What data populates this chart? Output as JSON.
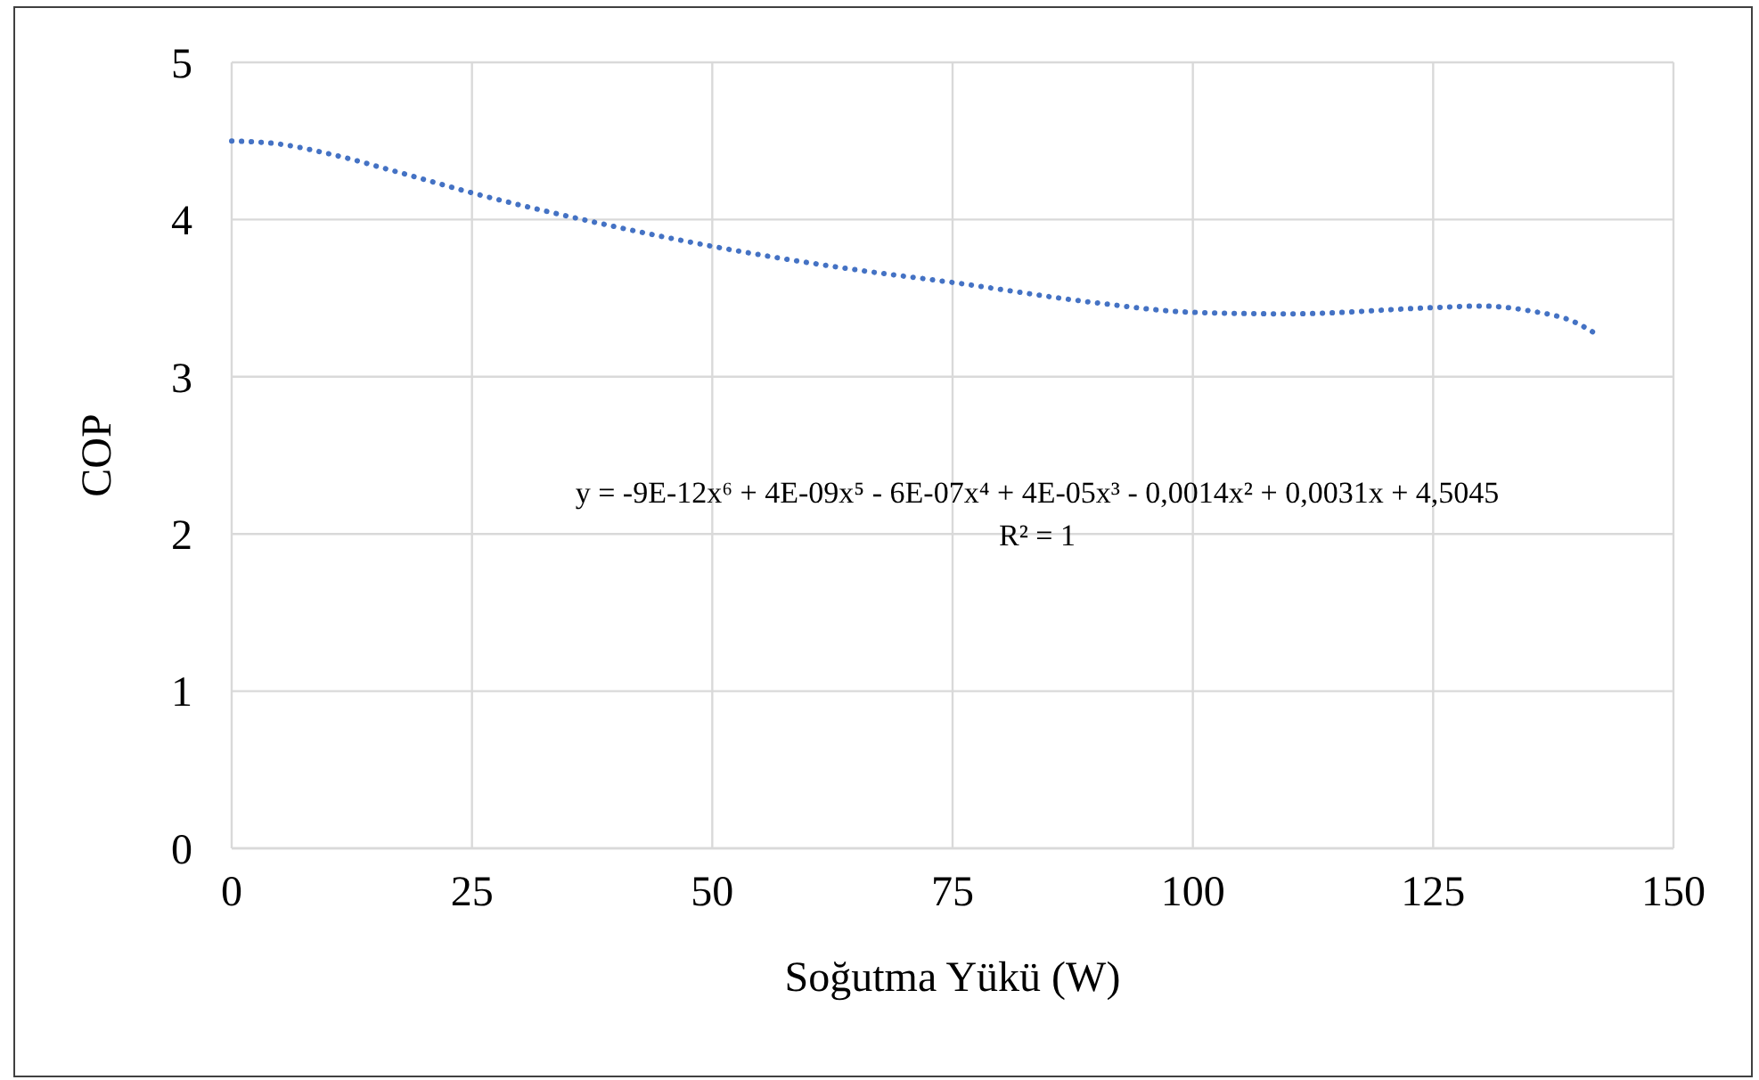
{
  "chart_data": {
    "type": "line",
    "xlabel": "Soğutma Yükü (W)",
    "ylabel": "COP",
    "x": [
      0,
      5,
      10,
      18,
      25,
      38,
      50,
      65,
      75,
      90,
      100,
      110,
      125,
      130,
      135,
      140,
      142
    ],
    "series": [
      {
        "color": "#4472c4",
        "values": [
          4.5,
          4.48,
          4.42,
          4.29,
          4.17,
          3.98,
          3.83,
          3.68,
          3.6,
          3.47,
          3.41,
          3.4,
          3.44,
          3.45,
          3.42,
          3.34,
          3.27
        ]
      }
    ],
    "xlim": [
      0,
      150
    ],
    "xticks": [
      0,
      25,
      50,
      75,
      100,
      125,
      150
    ],
    "ylim": [
      0,
      5
    ],
    "yticks": [
      0,
      1,
      2,
      3,
      4,
      5
    ],
    "grid": true,
    "marker": "none",
    "line_style": "dotted",
    "annotations": [
      "y = -9E-12x⁶ + 4E-09x⁵ - 6E-07x⁴ + 4E-05x³ - 0,0014x² + 0,0031x + 4,5045",
      "R² = 1"
    ]
  }
}
